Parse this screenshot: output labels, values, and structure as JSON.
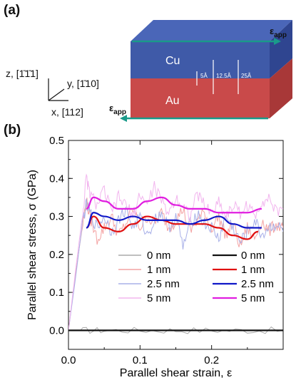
{
  "panel_labels": [
    "(a)",
    "(b)"
  ],
  "schematic": {
    "top_material": "Cu",
    "bottom_material": "Au",
    "top_color": "#3f5aa8",
    "bottom_color": "#c94a4a",
    "strain_label_main": "ε",
    "strain_label_sub": "app",
    "dimensions": [
      "5Å",
      "12.5Å",
      "25Å"
    ],
    "axes": {
      "z": "z, [1̄1̄1]",
      "y": "y, [1̄10]",
      "x": "x, [112]"
    }
  },
  "chart_data": {
    "type": "line",
    "xlabel": "Parallel shear strain, ε",
    "ylabel": "Parallel shear stress, σ (GPa)",
    "xlim": [
      0.0,
      0.3
    ],
    "ylim": [
      -0.05,
      0.5
    ],
    "xticks": [
      0.0,
      0.1,
      0.2
    ],
    "xtick_labels": [
      "0.0",
      "0.1",
      "0.2"
    ],
    "yticks": [
      0.0,
      0.1,
      0.2,
      0.3,
      0.4,
      0.5
    ],
    "ytick_labels": [
      "0.0",
      "0.1",
      "0.2",
      "0.3",
      "0.4",
      "0.5"
    ],
    "grid": false,
    "legend_placement": "right-middle",
    "series": [
      {
        "name": "0 nm",
        "color": "#aaaaaa",
        "style": "raw",
        "x": [
          0.0,
          0.02,
          0.05,
          0.1,
          0.15,
          0.2,
          0.25,
          0.3
        ],
        "y": [
          0.0,
          0.0,
          0.0,
          0.0,
          0.0,
          0.0,
          0.0,
          0.0
        ]
      },
      {
        "name": "0 nm",
        "color": "#111111",
        "style": "smooth",
        "x": [
          0.0,
          0.1,
          0.2,
          0.3
        ],
        "y": [
          0.0,
          0.0,
          0.0,
          0.0
        ]
      },
      {
        "name": "1 nm",
        "color": "#f4a3a3",
        "style": "raw",
        "x": [
          0.0,
          0.01,
          0.02,
          0.025,
          0.03,
          0.04,
          0.05,
          0.06,
          0.07,
          0.08,
          0.09,
          0.1,
          0.11,
          0.12,
          0.13,
          0.14,
          0.15,
          0.16,
          0.17,
          0.18,
          0.19,
          0.2,
          0.21,
          0.22,
          0.23,
          0.24,
          0.25,
          0.26,
          0.27,
          0.28,
          0.29,
          0.3
        ],
        "y": [
          0.0,
          0.15,
          0.28,
          0.34,
          0.3,
          0.24,
          0.27,
          0.3,
          0.25,
          0.28,
          0.32,
          0.27,
          0.3,
          0.28,
          0.31,
          0.27,
          0.29,
          0.32,
          0.26,
          0.29,
          0.31,
          0.27,
          0.3,
          0.25,
          0.28,
          0.22,
          0.27,
          0.24,
          0.29,
          0.26,
          0.28,
          0.27
        ]
      },
      {
        "name": "1 nm",
        "color": "#e01010",
        "style": "smooth",
        "x": [
          0.025,
          0.035,
          0.05,
          0.07,
          0.09,
          0.11,
          0.13,
          0.15,
          0.17,
          0.19,
          0.21,
          0.23,
          0.25,
          0.265
        ],
        "y": [
          0.27,
          0.3,
          0.27,
          0.26,
          0.28,
          0.3,
          0.29,
          0.28,
          0.28,
          0.28,
          0.27,
          0.25,
          0.24,
          0.26
        ]
      },
      {
        "name": "2.5 nm",
        "color": "#a8b0e8",
        "style": "raw",
        "x": [
          0.0,
          0.01,
          0.02,
          0.025,
          0.03,
          0.04,
          0.05,
          0.06,
          0.07,
          0.08,
          0.09,
          0.1,
          0.11,
          0.12,
          0.13,
          0.14,
          0.15,
          0.16,
          0.17,
          0.18,
          0.19,
          0.2,
          0.21,
          0.22,
          0.23,
          0.24,
          0.25,
          0.26,
          0.27,
          0.28,
          0.29,
          0.3
        ],
        "y": [
          0.0,
          0.14,
          0.29,
          0.33,
          0.31,
          0.27,
          0.3,
          0.26,
          0.29,
          0.32,
          0.27,
          0.3,
          0.25,
          0.29,
          0.31,
          0.27,
          0.3,
          0.22,
          0.28,
          0.31,
          0.28,
          0.27,
          0.24,
          0.3,
          0.27,
          0.23,
          0.26,
          0.29,
          0.25,
          0.27,
          0.28,
          0.26
        ]
      },
      {
        "name": "2.5 nm",
        "color": "#1018c8",
        "style": "smooth",
        "x": [
          0.025,
          0.035,
          0.05,
          0.07,
          0.09,
          0.11,
          0.13,
          0.15,
          0.17,
          0.19,
          0.21,
          0.23,
          0.25,
          0.27
        ],
        "y": [
          0.27,
          0.31,
          0.3,
          0.29,
          0.3,
          0.29,
          0.29,
          0.29,
          0.28,
          0.29,
          0.3,
          0.28,
          0.27,
          0.27
        ]
      },
      {
        "name": "5 nm",
        "color": "#f2b5ee",
        "style": "raw",
        "x": [
          0.0,
          0.01,
          0.02,
          0.025,
          0.03,
          0.04,
          0.05,
          0.06,
          0.07,
          0.08,
          0.09,
          0.1,
          0.11,
          0.12,
          0.13,
          0.14,
          0.15,
          0.16,
          0.17,
          0.18,
          0.19,
          0.2,
          0.21,
          0.22,
          0.23,
          0.24,
          0.25,
          0.26,
          0.27,
          0.28,
          0.29,
          0.3
        ],
        "y": [
          0.0,
          0.16,
          0.31,
          0.4,
          0.36,
          0.33,
          0.37,
          0.31,
          0.35,
          0.33,
          0.3,
          0.36,
          0.33,
          0.38,
          0.34,
          0.31,
          0.35,
          0.33,
          0.3,
          0.36,
          0.33,
          0.31,
          0.34,
          0.3,
          0.33,
          0.31,
          0.33,
          0.3,
          0.34,
          0.35,
          0.31,
          0.32
        ]
      },
      {
        "name": "5 nm",
        "color": "#e01ee0",
        "style": "smooth",
        "x": [
          0.025,
          0.035,
          0.05,
          0.07,
          0.09,
          0.11,
          0.13,
          0.15,
          0.17,
          0.19,
          0.21,
          0.23,
          0.25,
          0.27
        ],
        "y": [
          0.32,
          0.35,
          0.34,
          0.32,
          0.32,
          0.34,
          0.35,
          0.33,
          0.32,
          0.32,
          0.31,
          0.31,
          0.31,
          0.32
        ]
      }
    ],
    "legend": {
      "rows": [
        "0 nm",
        "1 nm",
        "2.5 nm",
        "5 nm"
      ],
      "raw_colors": [
        "#aaaaaa",
        "#f4a3a3",
        "#a8b0e8",
        "#f2b5ee"
      ],
      "smooth_colors": [
        "#111111",
        "#e01010",
        "#1018c8",
        "#e01ee0"
      ]
    }
  }
}
